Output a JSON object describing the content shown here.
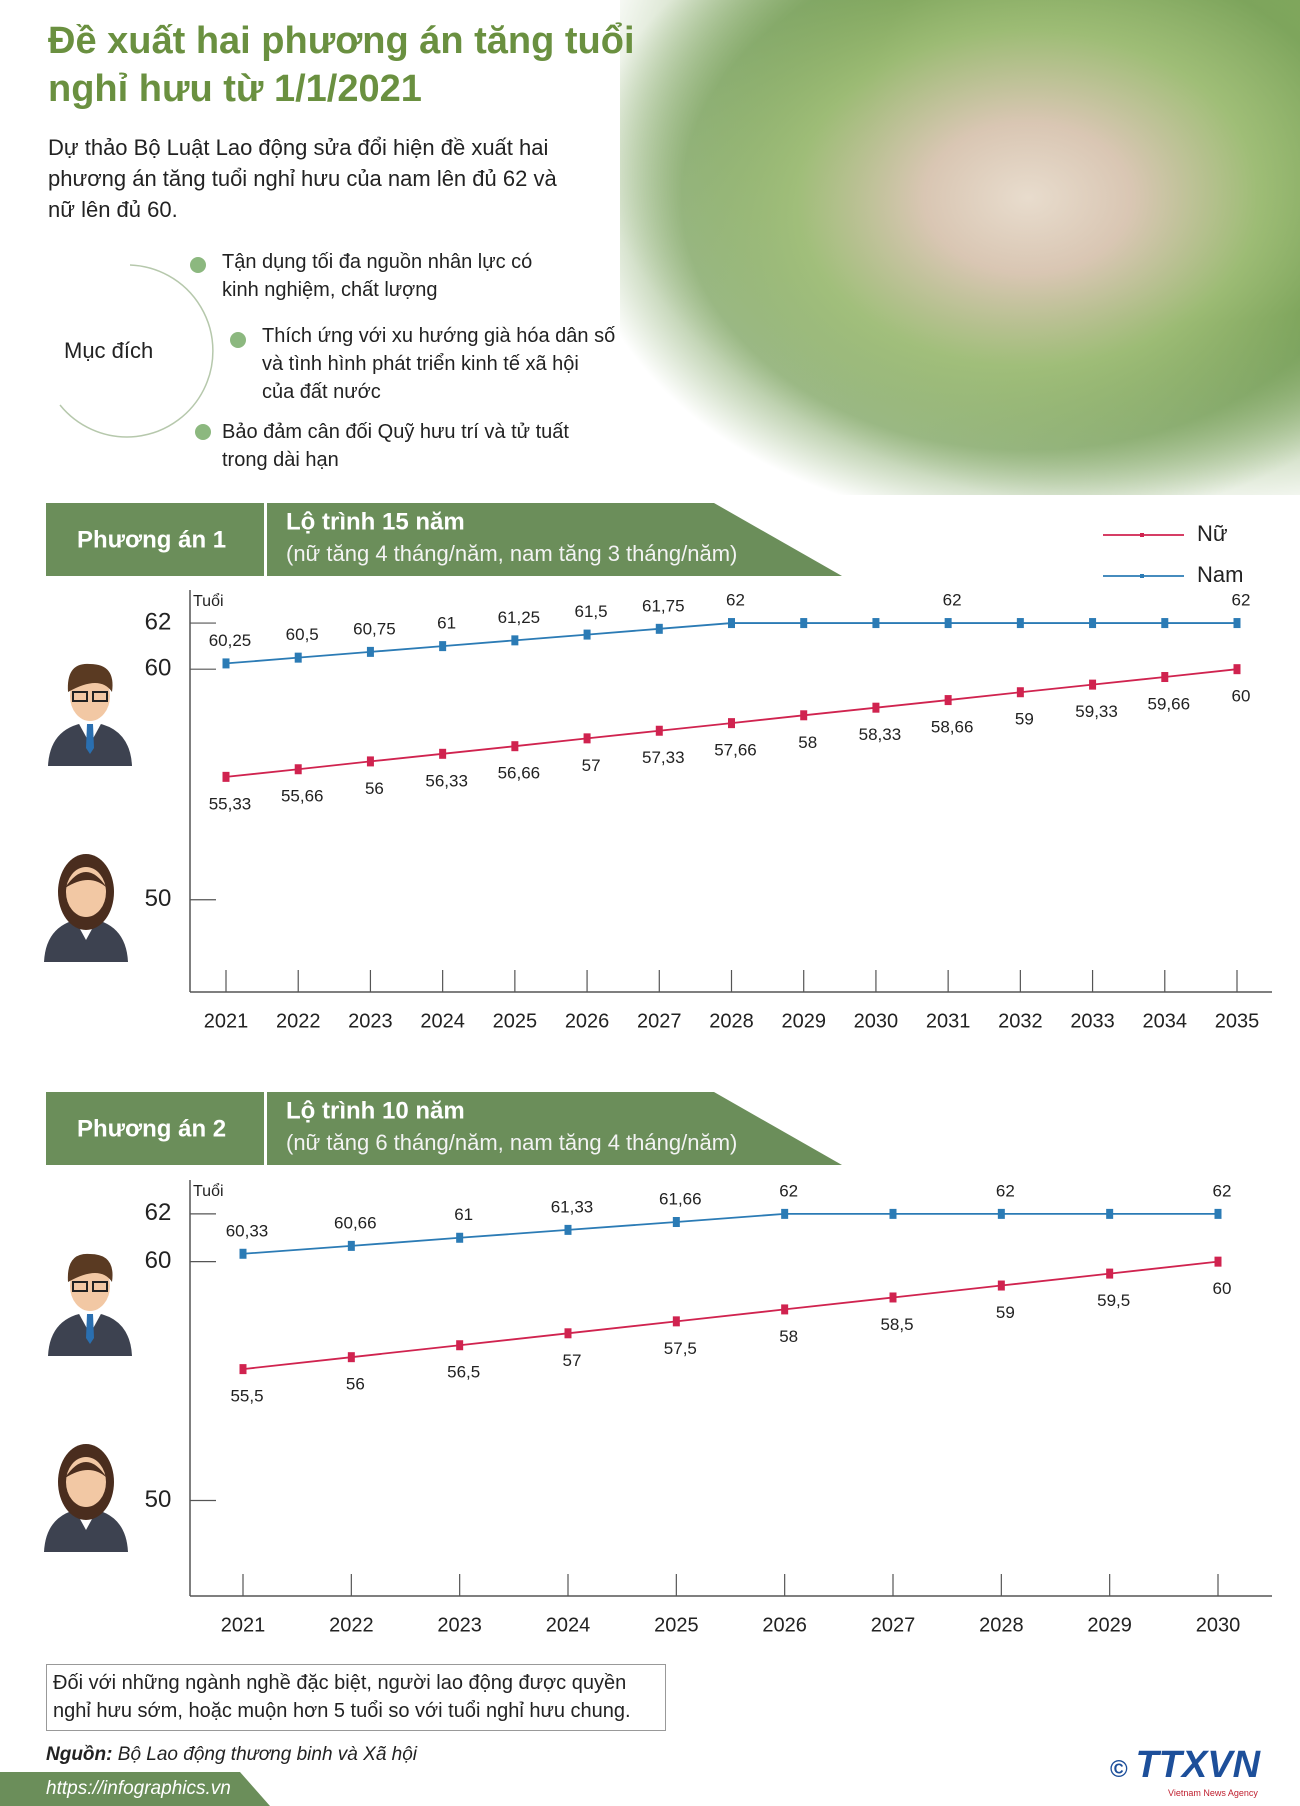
{
  "header": {
    "title": [
      "Đề xuất hai phương án tăng tuổi",
      "nghỉ hưu từ 1/1/2021"
    ],
    "intro": [
      "Dự thảo Bộ Luật Lao động sửa đổi hiện đề xuất hai",
      "phương án tăng tuổi nghỉ hưu của nam lên đủ 62 và",
      "nữ lên đủ 60."
    ]
  },
  "purpose": {
    "label": "Mục đích",
    "items": [
      [
        "Tận dụng tối đa nguồn nhân lực có",
        "kinh nghiệm, chất lượng"
      ],
      [
        "Thích ứng với xu hướng già hóa dân số",
        "và tình hình phát triển kinh tế xã hội",
        "của đất nước"
      ],
      [
        "Bảo đảm cân đối Quỹ hưu trí và tử tuất",
        "trong dài hạn"
      ]
    ]
  },
  "chart_data": [
    {
      "type": "line",
      "plan": "Phương án 1",
      "title": "Lộ trình 15 năm",
      "subtitle": "(nữ tăng 4 tháng/năm, nam tăng 3 tháng/năm)",
      "y_label": "Tuổi",
      "categories": [
        "2021",
        "2022",
        "2023",
        "2024",
        "2025",
        "2026",
        "2027",
        "2028",
        "2029",
        "2030",
        "2031",
        "2032",
        "2033",
        "2034",
        "2035"
      ],
      "series": [
        {
          "name": "Nữ",
          "color": "#d0234f",
          "values": [
            55.33,
            55.66,
            56,
            56.33,
            56.66,
            57,
            57.33,
            57.66,
            58,
            58.33,
            58.66,
            59,
            59.33,
            59.66,
            60
          ],
          "value_labels": [
            "55,33",
            "55,66",
            "56",
            "56,33",
            "56,66",
            "57",
            "57,33",
            "57,66",
            "58",
            "58,33",
            "58,66",
            "59",
            "59,33",
            "59,66",
            "60"
          ]
        },
        {
          "name": "Nam",
          "color": "#2b7bb5",
          "values": [
            60.25,
            60.5,
            60.75,
            61,
            61.25,
            61.5,
            61.75,
            62,
            62,
            62,
            62,
            62,
            62,
            62,
            62
          ],
          "value_labels": [
            "60,25",
            "60,5",
            "60,75",
            "61",
            "61,25",
            "61,5",
            "61,75",
            "62",
            null,
            null,
            "62",
            null,
            null,
            null,
            "62"
          ]
        }
      ],
      "ylim": [
        46,
        63
      ],
      "yticks": [
        50,
        60,
        62
      ],
      "legend": "top-right"
    },
    {
      "type": "line",
      "plan": "Phương án 2",
      "title": "Lộ trình 10 năm",
      "subtitle": "(nữ tăng 6 tháng/năm, nam tăng 4 tháng/năm)",
      "y_label": "Tuổi",
      "categories": [
        "2021",
        "2022",
        "2023",
        "2024",
        "2025",
        "2026",
        "2027",
        "2028",
        "2029",
        "2030"
      ],
      "series": [
        {
          "color": "#d0234f",
          "values": [
            55.5,
            56,
            56.5,
            57,
            57.5,
            58,
            58.5,
            59,
            59.5,
            60
          ],
          "value_labels": [
            "55,5",
            "56",
            "56,5",
            "57",
            "57,5",
            "58",
            "58,5",
            "59",
            "59,5",
            "60"
          ]
        },
        {
          "color": "#2b7bb5",
          "values": [
            60.33,
            60.66,
            61,
            61.33,
            61.66,
            62,
            62,
            62,
            62,
            62
          ],
          "value_labels": [
            "60,33",
            "60,66",
            "61",
            "61,33",
            "61,66",
            "62",
            null,
            "62",
            null,
            "62"
          ]
        }
      ],
      "ylim": [
        46,
        63
      ],
      "yticks": [
        50,
        60,
        62
      ]
    }
  ],
  "note": [
    "Đối với những ngành nghề đặc biệt, người lao động được quyền",
    "nghỉ hưu sớm, hoặc muộn hơn 5 tuổi so với tuổi nghỉ hưu chung."
  ],
  "source": {
    "label": "Nguồn:",
    "text": "Bộ Lao động thương binh và Xã hội"
  },
  "url": "https://infographics.vn",
  "logo": {
    "mark": "©",
    "name": "TTXVN",
    "sub": "Vietnam News Agency"
  }
}
